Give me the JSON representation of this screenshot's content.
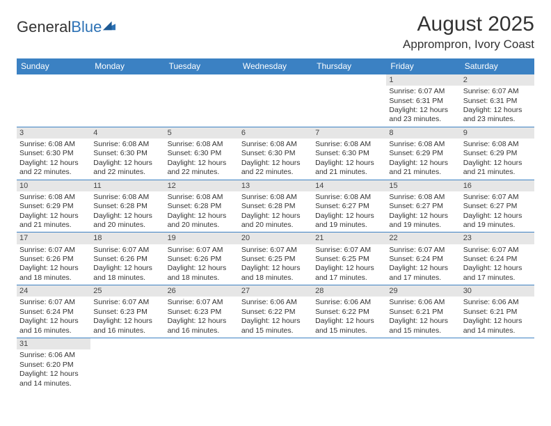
{
  "logo": {
    "textA": "General",
    "textB": "Blue",
    "markColor": "#2d72b5"
  },
  "header": {
    "monthTitle": "August 2025",
    "location": "Apprompron, Ivory Coast"
  },
  "colors": {
    "headerBg": "#3b81c3",
    "headerText": "#ffffff",
    "dayNumBg": "#e6e6e6",
    "ruleColor": "#3b81c3",
    "pageBg": "#ffffff",
    "bodyText": "#333333"
  },
  "dayHeaders": [
    "Sunday",
    "Monday",
    "Tuesday",
    "Wednesday",
    "Thursday",
    "Friday",
    "Saturday"
  ],
  "weeks": [
    [
      {
        "n": "",
        "empty": true
      },
      {
        "n": "",
        "empty": true
      },
      {
        "n": "",
        "empty": true
      },
      {
        "n": "",
        "empty": true
      },
      {
        "n": "",
        "empty": true
      },
      {
        "n": "1",
        "sr": "Sunrise: 6:07 AM",
        "ss": "Sunset: 6:31 PM",
        "d1": "Daylight: 12 hours",
        "d2": "and 23 minutes."
      },
      {
        "n": "2",
        "sr": "Sunrise: 6:07 AM",
        "ss": "Sunset: 6:31 PM",
        "d1": "Daylight: 12 hours",
        "d2": "and 23 minutes."
      }
    ],
    [
      {
        "n": "3",
        "sr": "Sunrise: 6:08 AM",
        "ss": "Sunset: 6:30 PM",
        "d1": "Daylight: 12 hours",
        "d2": "and 22 minutes."
      },
      {
        "n": "4",
        "sr": "Sunrise: 6:08 AM",
        "ss": "Sunset: 6:30 PM",
        "d1": "Daylight: 12 hours",
        "d2": "and 22 minutes."
      },
      {
        "n": "5",
        "sr": "Sunrise: 6:08 AM",
        "ss": "Sunset: 6:30 PM",
        "d1": "Daylight: 12 hours",
        "d2": "and 22 minutes."
      },
      {
        "n": "6",
        "sr": "Sunrise: 6:08 AM",
        "ss": "Sunset: 6:30 PM",
        "d1": "Daylight: 12 hours",
        "d2": "and 22 minutes."
      },
      {
        "n": "7",
        "sr": "Sunrise: 6:08 AM",
        "ss": "Sunset: 6:30 PM",
        "d1": "Daylight: 12 hours",
        "d2": "and 21 minutes."
      },
      {
        "n": "8",
        "sr": "Sunrise: 6:08 AM",
        "ss": "Sunset: 6:29 PM",
        "d1": "Daylight: 12 hours",
        "d2": "and 21 minutes."
      },
      {
        "n": "9",
        "sr": "Sunrise: 6:08 AM",
        "ss": "Sunset: 6:29 PM",
        "d1": "Daylight: 12 hours",
        "d2": "and 21 minutes."
      }
    ],
    [
      {
        "n": "10",
        "sr": "Sunrise: 6:08 AM",
        "ss": "Sunset: 6:29 PM",
        "d1": "Daylight: 12 hours",
        "d2": "and 21 minutes."
      },
      {
        "n": "11",
        "sr": "Sunrise: 6:08 AM",
        "ss": "Sunset: 6:28 PM",
        "d1": "Daylight: 12 hours",
        "d2": "and 20 minutes."
      },
      {
        "n": "12",
        "sr": "Sunrise: 6:08 AM",
        "ss": "Sunset: 6:28 PM",
        "d1": "Daylight: 12 hours",
        "d2": "and 20 minutes."
      },
      {
        "n": "13",
        "sr": "Sunrise: 6:08 AM",
        "ss": "Sunset: 6:28 PM",
        "d1": "Daylight: 12 hours",
        "d2": "and 20 minutes."
      },
      {
        "n": "14",
        "sr": "Sunrise: 6:08 AM",
        "ss": "Sunset: 6:27 PM",
        "d1": "Daylight: 12 hours",
        "d2": "and 19 minutes."
      },
      {
        "n": "15",
        "sr": "Sunrise: 6:08 AM",
        "ss": "Sunset: 6:27 PM",
        "d1": "Daylight: 12 hours",
        "d2": "and 19 minutes."
      },
      {
        "n": "16",
        "sr": "Sunrise: 6:07 AM",
        "ss": "Sunset: 6:27 PM",
        "d1": "Daylight: 12 hours",
        "d2": "and 19 minutes."
      }
    ],
    [
      {
        "n": "17",
        "sr": "Sunrise: 6:07 AM",
        "ss": "Sunset: 6:26 PM",
        "d1": "Daylight: 12 hours",
        "d2": "and 18 minutes."
      },
      {
        "n": "18",
        "sr": "Sunrise: 6:07 AM",
        "ss": "Sunset: 6:26 PM",
        "d1": "Daylight: 12 hours",
        "d2": "and 18 minutes."
      },
      {
        "n": "19",
        "sr": "Sunrise: 6:07 AM",
        "ss": "Sunset: 6:26 PM",
        "d1": "Daylight: 12 hours",
        "d2": "and 18 minutes."
      },
      {
        "n": "20",
        "sr": "Sunrise: 6:07 AM",
        "ss": "Sunset: 6:25 PM",
        "d1": "Daylight: 12 hours",
        "d2": "and 18 minutes."
      },
      {
        "n": "21",
        "sr": "Sunrise: 6:07 AM",
        "ss": "Sunset: 6:25 PM",
        "d1": "Daylight: 12 hours",
        "d2": "and 17 minutes."
      },
      {
        "n": "22",
        "sr": "Sunrise: 6:07 AM",
        "ss": "Sunset: 6:24 PM",
        "d1": "Daylight: 12 hours",
        "d2": "and 17 minutes."
      },
      {
        "n": "23",
        "sr": "Sunrise: 6:07 AM",
        "ss": "Sunset: 6:24 PM",
        "d1": "Daylight: 12 hours",
        "d2": "and 17 minutes."
      }
    ],
    [
      {
        "n": "24",
        "sr": "Sunrise: 6:07 AM",
        "ss": "Sunset: 6:24 PM",
        "d1": "Daylight: 12 hours",
        "d2": "and 16 minutes."
      },
      {
        "n": "25",
        "sr": "Sunrise: 6:07 AM",
        "ss": "Sunset: 6:23 PM",
        "d1": "Daylight: 12 hours",
        "d2": "and 16 minutes."
      },
      {
        "n": "26",
        "sr": "Sunrise: 6:07 AM",
        "ss": "Sunset: 6:23 PM",
        "d1": "Daylight: 12 hours",
        "d2": "and 16 minutes."
      },
      {
        "n": "27",
        "sr": "Sunrise: 6:06 AM",
        "ss": "Sunset: 6:22 PM",
        "d1": "Daylight: 12 hours",
        "d2": "and 15 minutes."
      },
      {
        "n": "28",
        "sr": "Sunrise: 6:06 AM",
        "ss": "Sunset: 6:22 PM",
        "d1": "Daylight: 12 hours",
        "d2": "and 15 minutes."
      },
      {
        "n": "29",
        "sr": "Sunrise: 6:06 AM",
        "ss": "Sunset: 6:21 PM",
        "d1": "Daylight: 12 hours",
        "d2": "and 15 minutes."
      },
      {
        "n": "30",
        "sr": "Sunrise: 6:06 AM",
        "ss": "Sunset: 6:21 PM",
        "d1": "Daylight: 12 hours",
        "d2": "and 14 minutes."
      }
    ],
    [
      {
        "n": "31",
        "sr": "Sunrise: 6:06 AM",
        "ss": "Sunset: 6:20 PM",
        "d1": "Daylight: 12 hours",
        "d2": "and 14 minutes."
      },
      {
        "n": "",
        "empty": true
      },
      {
        "n": "",
        "empty": true
      },
      {
        "n": "",
        "empty": true
      },
      {
        "n": "",
        "empty": true
      },
      {
        "n": "",
        "empty": true
      },
      {
        "n": "",
        "empty": true
      }
    ]
  ]
}
